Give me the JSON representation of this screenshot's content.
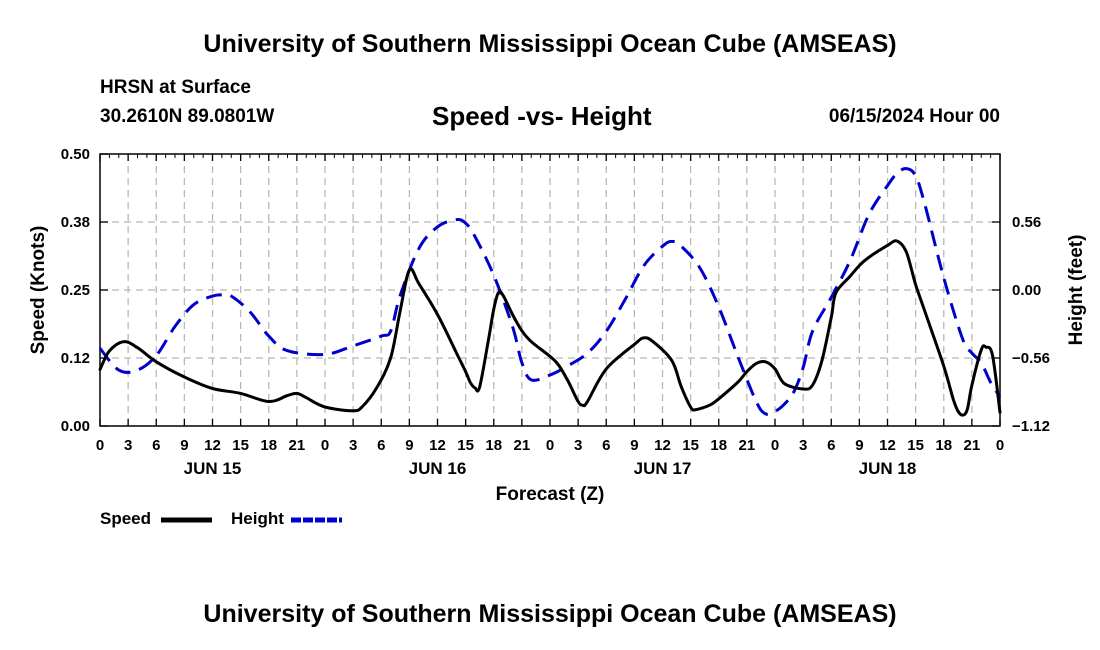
{
  "header": {
    "top_title": "University of Southern Mississippi Ocean Cube (AMSEAS)",
    "station": "HRSN at Surface",
    "coords": "30.2610N  89.0801W",
    "date": "06/15/2024 Hour 00",
    "bottom_title": "University of Southern Mississippi Ocean Cube (AMSEAS)"
  },
  "chart_data": {
    "type": "line",
    "title": "Speed -vs- Height",
    "xlabel": "Forecast (Z)",
    "ylabel": "Speed (Knots)",
    "y2label": "Height (feet)",
    "x_unit": "hours since 06/15/2024 00Z",
    "xlim": [
      0,
      96
    ],
    "ylim": [
      0,
      0.5
    ],
    "y2lim": [
      -1.12,
      1.12
    ],
    "yticks": [
      {
        "value": 0.0,
        "label": "0.00"
      },
      {
        "value": 0.125,
        "label": "0.12"
      },
      {
        "value": 0.25,
        "label": "0.25"
      },
      {
        "value": 0.375,
        "label": "0.38"
      },
      {
        "value": 0.5,
        "label": "0.50"
      }
    ],
    "y2ticks": [
      {
        "value": -1.12,
        "label": "−1.12"
      },
      {
        "value": -0.56,
        "label": "−0.56"
      },
      {
        "value": 0.0,
        "label": "0.00"
      },
      {
        "value": 0.56,
        "label": "0.56"
      }
    ],
    "xtick_labels": [
      "0",
      "3",
      "6",
      "9",
      "12",
      "15",
      "18",
      "21",
      "0",
      "3",
      "6",
      "9",
      "12",
      "15",
      "18",
      "21",
      "0",
      "3",
      "6",
      "9",
      "12",
      "15",
      "18",
      "21",
      "0",
      "3",
      "6",
      "9",
      "12",
      "15",
      "18",
      "21",
      "0"
    ],
    "day_labels": [
      {
        "x": 12,
        "label": "JUN 15"
      },
      {
        "x": 36,
        "label": "JUN 16"
      },
      {
        "x": 60,
        "label": "JUN 17"
      },
      {
        "x": 84,
        "label": "JUN 18"
      }
    ],
    "grid": true,
    "legend": [
      {
        "name": "Speed",
        "color": "#000000",
        "dash": "solid"
      },
      {
        "name": "Height",
        "color": "#0000cc",
        "dash": "dashed"
      }
    ],
    "series": [
      {
        "name": "Speed",
        "axis": "left",
        "color": "#000000",
        "points": [
          [
            0,
            0.104
          ],
          [
            1,
            0.138
          ],
          [
            2.5,
            0.155
          ],
          [
            4,
            0.144
          ],
          [
            6,
            0.118
          ],
          [
            9,
            0.09
          ],
          [
            12,
            0.069
          ],
          [
            15,
            0.06
          ],
          [
            18,
            0.045
          ],
          [
            20,
            0.056
          ],
          [
            21,
            0.06
          ],
          [
            22,
            0.052
          ],
          [
            24,
            0.035
          ],
          [
            27,
            0.028
          ],
          [
            28,
            0.036
          ],
          [
            29.5,
            0.07
          ],
          [
            31,
            0.125
          ],
          [
            32,
            0.21
          ],
          [
            33,
            0.287
          ],
          [
            34,
            0.262
          ],
          [
            36,
            0.205
          ],
          [
            38,
            0.135
          ],
          [
            39,
            0.1
          ],
          [
            39.5,
            0.08
          ],
          [
            40,
            0.07
          ],
          [
            40.5,
            0.072
          ],
          [
            41.5,
            0.165
          ],
          [
            42,
            0.215
          ],
          [
            42.5,
            0.245
          ],
          [
            43,
            0.24
          ],
          [
            44,
            0.205
          ],
          [
            45,
            0.175
          ],
          [
            46,
            0.155
          ],
          [
            48,
            0.128
          ],
          [
            49,
            0.11
          ],
          [
            50,
            0.08
          ],
          [
            51,
            0.045
          ],
          [
            51.5,
            0.038
          ],
          [
            52,
            0.045
          ],
          [
            54,
            0.105
          ],
          [
            57,
            0.15
          ],
          [
            58,
            0.162
          ],
          [
            59,
            0.155
          ],
          [
            61,
            0.12
          ],
          [
            62,
            0.072
          ],
          [
            63,
            0.035
          ],
          [
            63.5,
            0.03
          ],
          [
            65,
            0.038
          ],
          [
            66,
            0.05
          ],
          [
            68,
            0.08
          ],
          [
            69,
            0.1
          ],
          [
            70,
            0.115
          ],
          [
            71,
            0.118
          ],
          [
            72,
            0.105
          ],
          [
            73,
            0.078
          ],
          [
            75,
            0.068
          ],
          [
            76,
            0.075
          ],
          [
            77,
            0.12
          ],
          [
            78,
            0.2
          ],
          [
            78.5,
            0.245
          ],
          [
            80,
            0.275
          ],
          [
            81,
            0.295
          ],
          [
            82,
            0.31
          ],
          [
            84,
            0.332
          ],
          [
            85,
            0.34
          ],
          [
            86,
            0.32
          ],
          [
            87,
            0.26
          ],
          [
            88,
            0.21
          ],
          [
            90,
            0.11
          ],
          [
            91,
            0.05
          ],
          [
            91.5,
            0.028
          ],
          [
            92,
            0.02
          ],
          [
            92.5,
            0.03
          ],
          [
            93,
            0.075
          ],
          [
            94,
            0.14
          ],
          [
            94.5,
            0.145
          ],
          [
            95.2,
            0.13
          ],
          [
            96,
            0.025
          ]
        ]
      },
      {
        "name": "Height",
        "axis": "right",
        "color": "#0000cc",
        "points": [
          [
            0,
            -0.48
          ],
          [
            2,
            -0.66
          ],
          [
            4,
            -0.66
          ],
          [
            6,
            -0.54
          ],
          [
            8,
            -0.3
          ],
          [
            10,
            -0.12
          ],
          [
            12,
            -0.05
          ],
          [
            13,
            -0.04
          ],
          [
            14,
            -0.05
          ],
          [
            16,
            -0.18
          ],
          [
            18,
            -0.38
          ],
          [
            20,
            -0.5
          ],
          [
            24,
            -0.53
          ],
          [
            27,
            -0.46
          ],
          [
            30,
            -0.38
          ],
          [
            31,
            -0.34
          ],
          [
            32,
            -0.05
          ],
          [
            34,
            0.34
          ],
          [
            36,
            0.52
          ],
          [
            38,
            0.58
          ],
          [
            39,
            0.55
          ],
          [
            40,
            0.44
          ],
          [
            42,
            0.12
          ],
          [
            44,
            -0.3
          ],
          [
            45,
            -0.6
          ],
          [
            46,
            -0.74
          ],
          [
            48,
            -0.7
          ],
          [
            50,
            -0.62
          ],
          [
            52,
            -0.52
          ],
          [
            54,
            -0.34
          ],
          [
            56,
            -0.08
          ],
          [
            58,
            0.2
          ],
          [
            60,
            0.36
          ],
          [
            61,
            0.4
          ],
          [
            62,
            0.36
          ],
          [
            64,
            0.18
          ],
          [
            66,
            -0.14
          ],
          [
            68,
            -0.54
          ],
          [
            70,
            -0.92
          ],
          [
            71,
            -1.02
          ],
          [
            72,
            -1.0
          ],
          [
            73,
            -0.94
          ],
          [
            74,
            -0.84
          ],
          [
            75,
            -0.64
          ],
          [
            76,
            -0.34
          ],
          [
            78,
            -0.06
          ],
          [
            80,
            0.24
          ],
          [
            82,
            0.62
          ],
          [
            84,
            0.86
          ],
          [
            85,
            0.96
          ],
          [
            86,
            1.0
          ],
          [
            87,
            0.94
          ],
          [
            88,
            0.7
          ],
          [
            90,
            0.1
          ],
          [
            92,
            -0.4
          ],
          [
            93,
            -0.52
          ],
          [
            94,
            -0.6
          ],
          [
            95,
            -0.76
          ],
          [
            96,
            -0.88
          ]
        ]
      }
    ]
  }
}
